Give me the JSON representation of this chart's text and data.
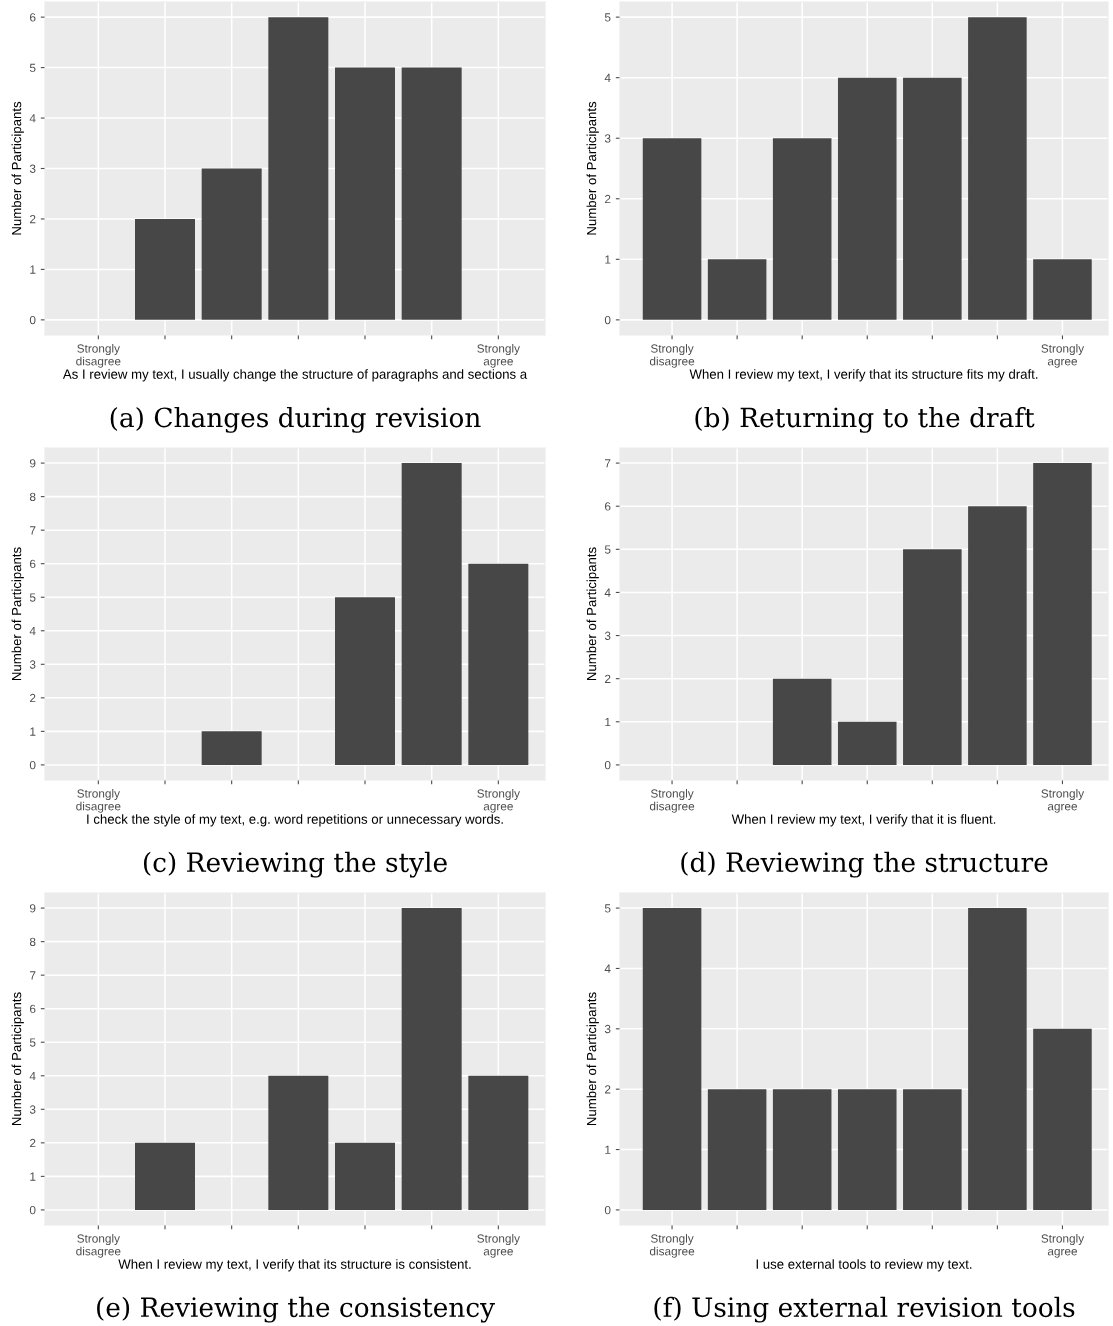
{
  "chart_data": [
    {
      "type": "bar",
      "title": "(a) Changes during revision",
      "xlabel": "As I review my text, I usually change the structure of paragraphs and sections a",
      "ylabel": "Number of Participants",
      "categories": [
        "Strongly\ndisagree",
        null,
        null,
        null,
        null,
        null,
        "Strongly\nagree"
      ],
      "values": [
        0,
        2,
        3,
        6,
        5,
        5,
        0
      ],
      "color": "#474747",
      "ylim": [
        -0.3,
        6.3
      ],
      "yticks": [
        0,
        1,
        2,
        3,
        4,
        5,
        6
      ],
      "grid": true
    },
    {
      "type": "bar",
      "title": "(b) Returning to the draft",
      "xlabel": "When I review my text, I verify that its structure fits my draft.",
      "ylabel": "Number of Participants",
      "categories": [
        "Strongly\ndisagree",
        null,
        null,
        null,
        null,
        null,
        "Strongly\nagree"
      ],
      "values": [
        3,
        1,
        3,
        4,
        4,
        5,
        1
      ],
      "color": "#474747",
      "ylim": [
        -0.25,
        5.25
      ],
      "yticks": [
        0,
        1,
        2,
        3,
        4,
        5
      ],
      "grid": true
    },
    {
      "type": "bar",
      "title": "(c) Reviewing the style",
      "xlabel": "I check the style of my text, e.g. word repetitions or unnecessary words.",
      "ylabel": "Number of Participants",
      "categories": [
        "Strongly\ndisagree",
        null,
        null,
        null,
        null,
        null,
        "Strongly\nagree"
      ],
      "values": [
        0,
        0,
        1,
        0,
        5,
        9,
        6
      ],
      "color": "#474747",
      "ylim": [
        -0.45,
        9.45
      ],
      "yticks": [
        0,
        1,
        2,
        3,
        4,
        5,
        6,
        7,
        8,
        9
      ],
      "grid": true
    },
    {
      "type": "bar",
      "title": "(d) Reviewing the structure",
      "xlabel": "When I review my text, I verify that it is fluent.",
      "ylabel": "Number of Participants",
      "categories": [
        "Strongly\ndisagree",
        null,
        null,
        null,
        null,
        null,
        "Strongly\nagree"
      ],
      "values": [
        0,
        0,
        2,
        1,
        5,
        6,
        7
      ],
      "color": "#474747",
      "ylim": [
        -0.35,
        7.35
      ],
      "yticks": [
        0,
        1,
        2,
        3,
        4,
        5,
        6,
        7
      ],
      "grid": true
    },
    {
      "type": "bar",
      "title": "(e) Reviewing the consistency",
      "xlabel": "When I review my text, I verify that its structure is consistent.",
      "ylabel": "Number of Participants",
      "categories": [
        "Strongly\ndisagree",
        null,
        null,
        null,
        null,
        null,
        "Strongly\nagree"
      ],
      "values": [
        0,
        2,
        0,
        4,
        2,
        9,
        4
      ],
      "color": "#474747",
      "ylim": [
        -0.45,
        9.45
      ],
      "yticks": [
        0,
        1,
        2,
        3,
        4,
        5,
        6,
        7,
        8,
        9
      ],
      "grid": true
    },
    {
      "type": "bar",
      "title": "(f) Using external revision tools",
      "xlabel": "I use external tools to review my text.",
      "ylabel": "Number of Participants",
      "categories": [
        "Strongly\ndisagree",
        null,
        null,
        null,
        null,
        null,
        "Strongly\nagree"
      ],
      "values": [
        5,
        2,
        2,
        2,
        2,
        5,
        3
      ],
      "color": "#474747",
      "ylim": [
        -0.25,
        5.25
      ],
      "yticks": [
        0,
        1,
        2,
        3,
        4,
        5
      ],
      "grid": true
    }
  ]
}
